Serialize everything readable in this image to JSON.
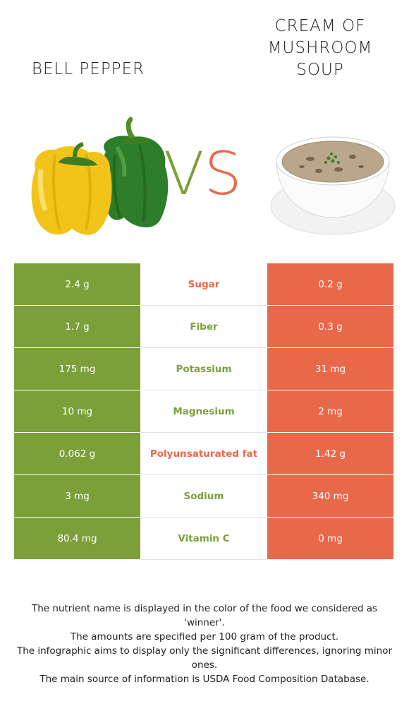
{
  "left_food": {
    "name": "BELL PEPPER",
    "color": "#7ba03a"
  },
  "right_food": {
    "name": "CREAM OF MUSHROOM SOUP",
    "color": "#e8694a"
  },
  "vs": {
    "v": "V",
    "s": "S"
  },
  "rows": [
    {
      "left": "2.4 g",
      "nutrient": "Sugar",
      "right": "0.2 g",
      "winner": "right"
    },
    {
      "left": "1.7 g",
      "nutrient": "Fiber",
      "right": "0.3 g",
      "winner": "left"
    },
    {
      "left": "175 mg",
      "nutrient": "Potassium",
      "right": "31 mg",
      "winner": "left"
    },
    {
      "left": "10 mg",
      "nutrient": "Magnesium",
      "right": "2 mg",
      "winner": "left"
    },
    {
      "left": "0.062 g",
      "nutrient": "Polyunsaturated fat",
      "right": "1.42 g",
      "winner": "right"
    },
    {
      "left": "3 mg",
      "nutrient": "Sodium",
      "right": "340 mg",
      "winner": "left"
    },
    {
      "left": "80.4 mg",
      "nutrient": "Vitamin C",
      "right": "0 mg",
      "winner": "left"
    }
  ],
  "footnotes": [
    "The nutrient name is displayed in the color of the food we considered as 'winner'.",
    "The amounts are specified per 100 gram of the product.",
    "The infographic aims to display only the significant differences, ignoring minor ones.",
    "The main source of information is USDA Food Composition Database."
  ]
}
